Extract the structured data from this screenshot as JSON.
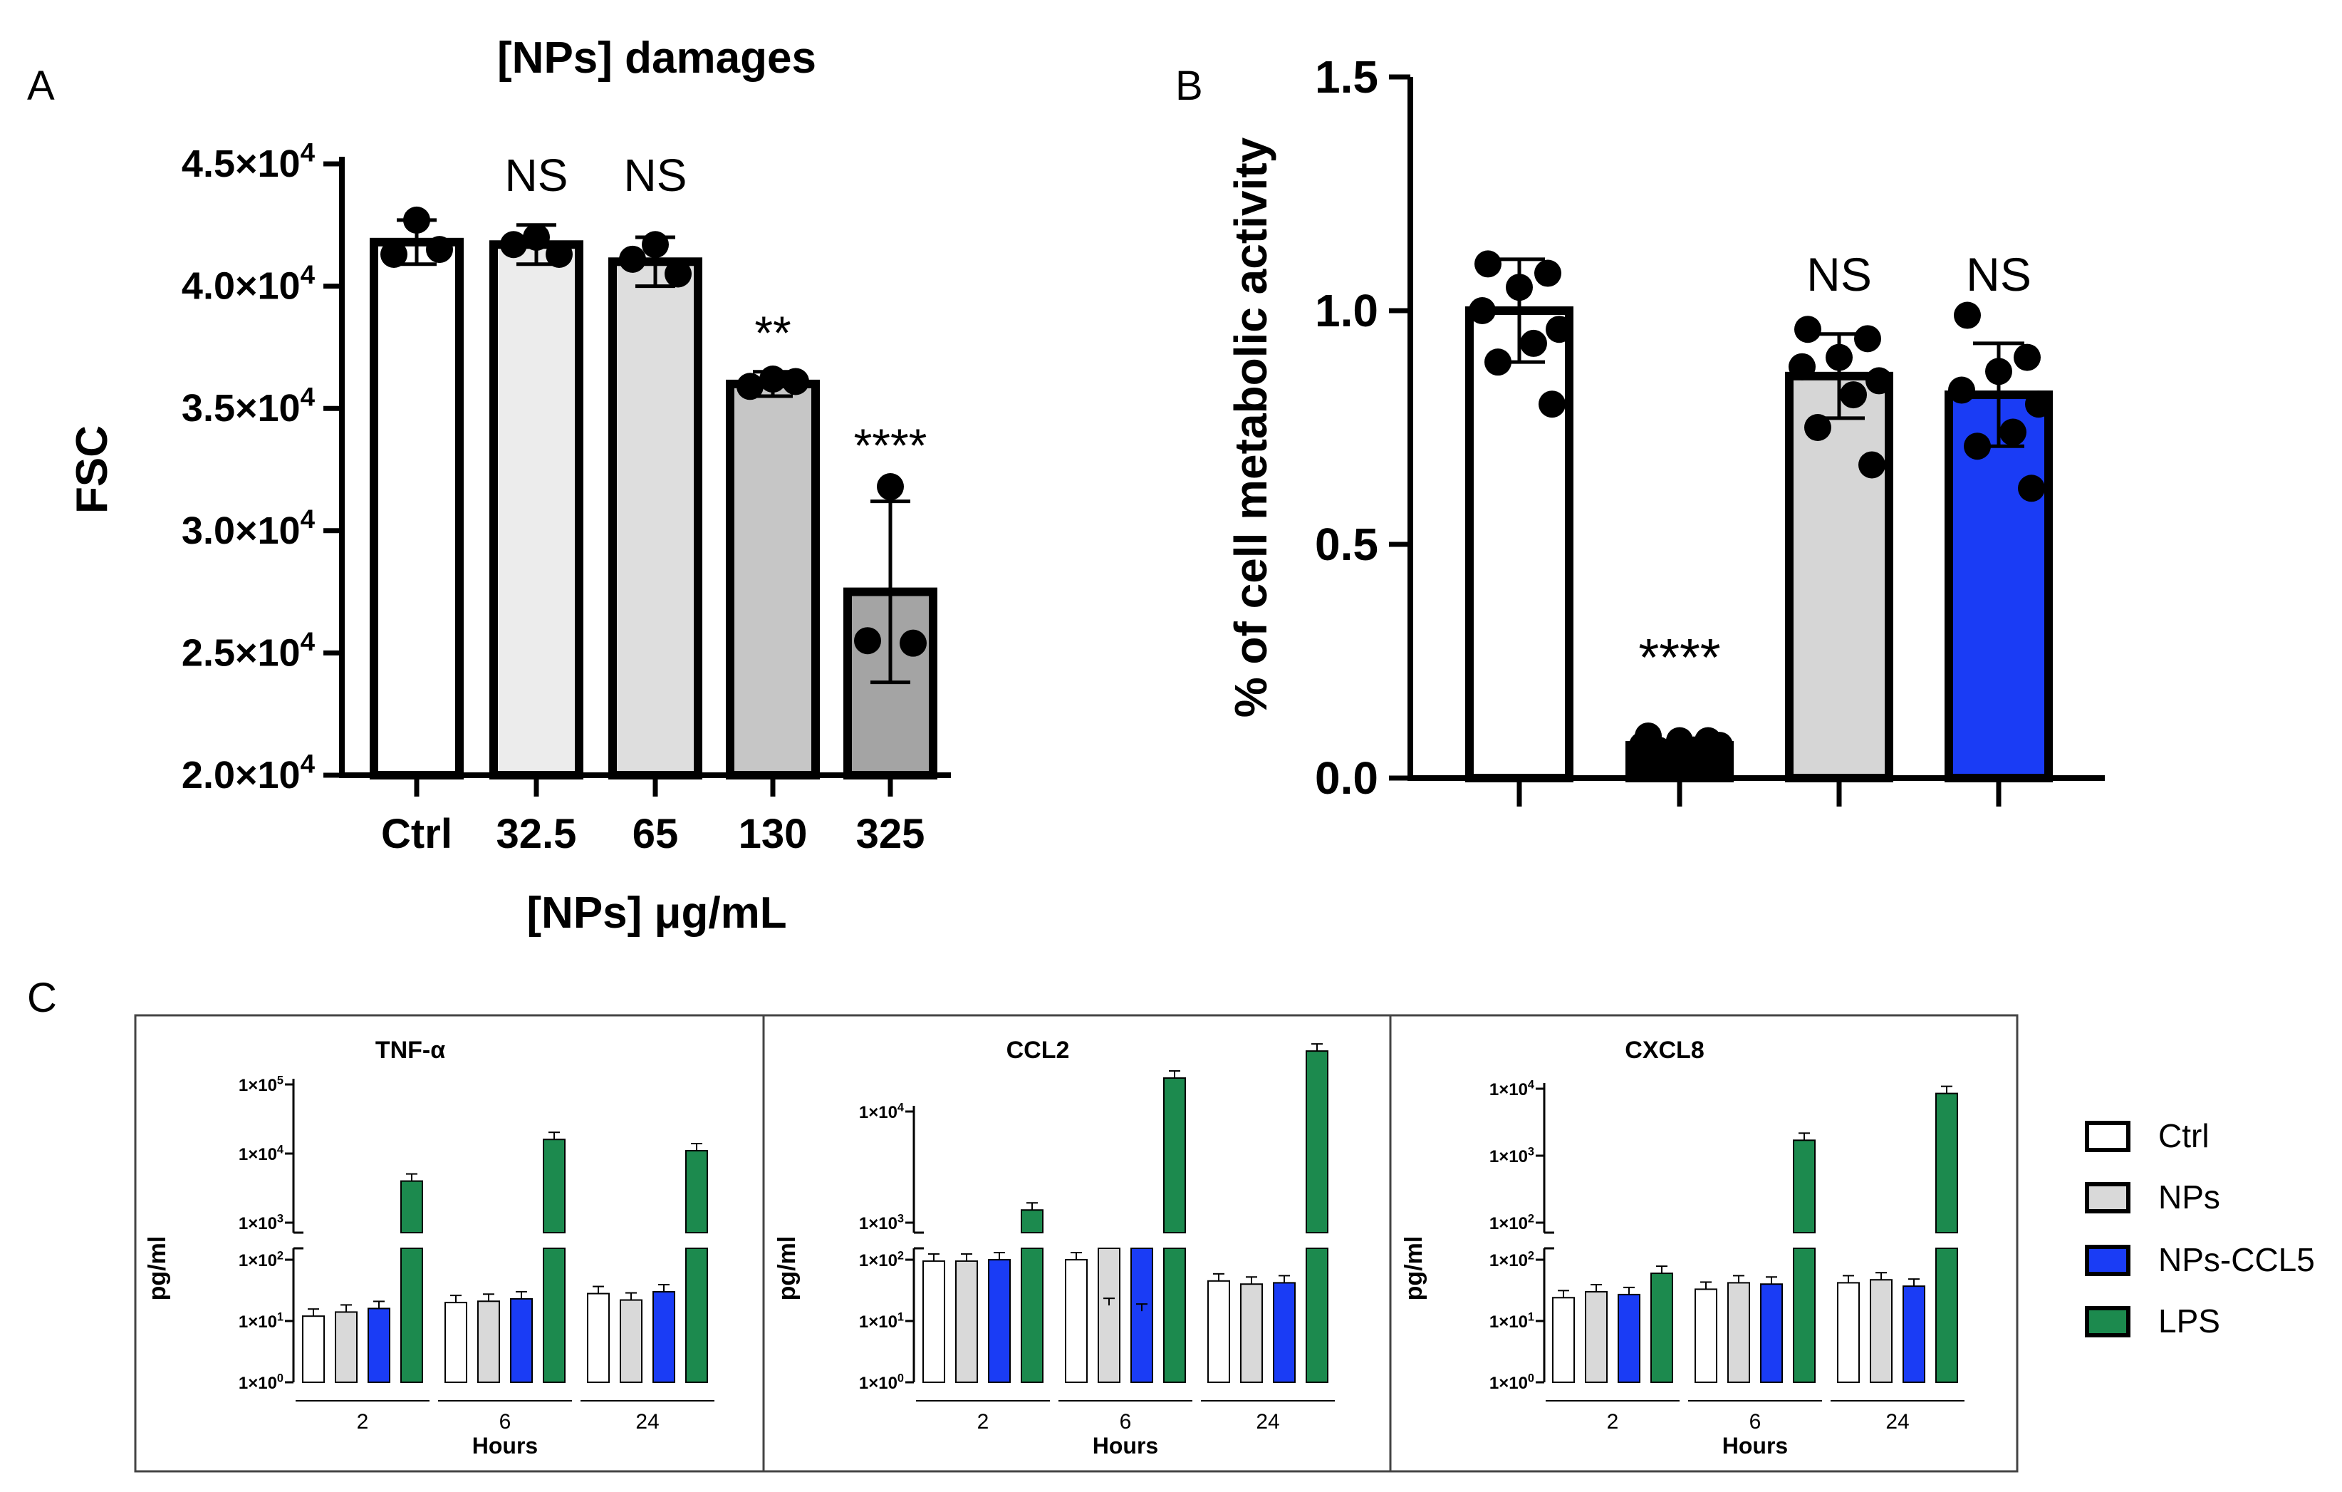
{
  "colors": {
    "ctrl": "#ffffff",
    "nps": "#d9d9d9",
    "nps_ccl5": "#1a3cf5",
    "lps": "#1c8a4e",
    "a_shades": [
      "#ffffff",
      "#ececec",
      "#dedede",
      "#c6c6c6",
      "#a4a4a4"
    ],
    "b_fills": [
      "#ffffff",
      "#000000",
      "#d6d6d6",
      "#1a3cf5"
    ]
  },
  "chart_data": [
    {
      "panel": "A",
      "type": "bar",
      "title": "[NPs] damages",
      "xlabel": "[NPs] μg/mL",
      "ylabel": "FSC",
      "ylim": [
        20000,
        45000
      ],
      "ytick_labels": [
        {
          "value": 20000,
          "mant": "2.0×10",
          "exp": "4"
        },
        {
          "value": 25000,
          "mant": "2.5×10",
          "exp": "4"
        },
        {
          "value": 30000,
          "mant": "3.0×10",
          "exp": "4"
        },
        {
          "value": 35000,
          "mant": "3.5×10",
          "exp": "4"
        },
        {
          "value": 40000,
          "mant": "4.0×10",
          "exp": "4"
        },
        {
          "value": 45000,
          "mant": "4.5×10",
          "exp": "4"
        }
      ],
      "categories": [
        "Ctrl",
        "32.5",
        "65",
        "130",
        "325"
      ],
      "values": [
        41800,
        41700,
        41000,
        36000,
        27500
      ],
      "errors": [
        900,
        800,
        1000,
        500,
        3700
      ],
      "points": [
        [
          42700,
          41300,
          41500
        ],
        [
          42000,
          41700,
          41300
        ],
        [
          41700,
          41100,
          40500
        ],
        [
          36200,
          35900,
          36100
        ],
        [
          31800,
          25500,
          25400
        ]
      ],
      "significance": [
        "",
        "NS",
        "NS",
        "**",
        "****"
      ]
    },
    {
      "panel": "B",
      "type": "bar",
      "ylabel": "% of cell metabolic activity",
      "ylim": [
        0,
        1.5
      ],
      "yticks": [
        "0.0",
        "0.5",
        "1.0",
        "1.5"
      ],
      "values": [
        1.0,
        0.07,
        0.86,
        0.82
      ],
      "errors": [
        0.11,
        0.01,
        0.09,
        0.11
      ],
      "points": [
        [
          1.1,
          1.08,
          1.05,
          1.0,
          0.96,
          0.93,
          0.89,
          0.8
        ],
        [
          0.09,
          0.08,
          0.08,
          0.07,
          0.07,
          0.06,
          0.06,
          0.06
        ],
        [
          0.96,
          0.94,
          0.9,
          0.88,
          0.85,
          0.82,
          0.75,
          0.67
        ],
        [
          0.99,
          0.9,
          0.87,
          0.83,
          0.8,
          0.74,
          0.71,
          0.62
        ]
      ],
      "significance": [
        "",
        "****",
        "NS",
        "NS"
      ]
    },
    {
      "panel": "C",
      "type": "bar",
      "scale": "log",
      "legend": [
        "Ctrl",
        "NPs",
        "NPs-CCL5",
        "LPS"
      ],
      "xlabel": "Hours",
      "ylabel": "pg/ml",
      "groups": [
        "2",
        "6",
        "24"
      ],
      "subplots": [
        {
          "title": "TNF-α",
          "upper_ticks": [
            {
              "mant": "1×10",
              "exp": "3"
            },
            {
              "mant": "1×10",
              "exp": "4"
            },
            {
              "mant": "1×10",
              "exp": "5"
            }
          ],
          "lower_ticks": [
            {
              "mant": "1×10",
              "exp": "0"
            },
            {
              "mant": "1×10",
              "exp": "1"
            },
            {
              "mant": "1×10",
              "exp": "2"
            }
          ],
          "series": [
            {
              "name": "Ctrl",
              "values": [
                12,
                20,
                28
              ]
            },
            {
              "name": "NPs",
              "values": [
                14,
                21,
                22
              ]
            },
            {
              "name": "NPs-CCL5",
              "values": [
                16,
                23,
                30
              ]
            },
            {
              "name": "LPS",
              "values": [
                4000,
                16000,
                11000
              ]
            }
          ]
        },
        {
          "title": "CCL2",
          "upper_ticks": [
            {
              "mant": "1×10",
              "exp": "3"
            },
            {
              "mant": "1×10",
              "exp": "4"
            }
          ],
          "lower_ticks": [
            {
              "mant": "1×10",
              "exp": "0"
            },
            {
              "mant": "1×10",
              "exp": "1"
            },
            {
              "mant": "1×10",
              "exp": "2"
            }
          ],
          "series": [
            {
              "name": "Ctrl",
              "values": [
                95,
                100,
                45
              ]
            },
            {
              "name": "NPs",
              "values": [
                95,
                180,
                40
              ]
            },
            {
              "name": "NPs-CCL5",
              "values": [
                100,
                160,
                42
              ]
            },
            {
              "name": "LPS",
              "values": [
                1300,
                20000,
                35000
              ]
            }
          ]
        },
        {
          "title": "CXCL8",
          "upper_ticks": [
            {
              "mant": "1×10",
              "exp": "2"
            },
            {
              "mant": "1×10",
              "exp": "3"
            },
            {
              "mant": "1×10",
              "exp": "4"
            }
          ],
          "lower_ticks": [
            {
              "mant": "1×10",
              "exp": "0"
            },
            {
              "mant": "1×10",
              "exp": "1"
            },
            {
              "mant": "1×10",
              "exp": "2"
            }
          ],
          "series": [
            {
              "name": "Ctrl",
              "values": [
                24,
                33,
                42
              ]
            },
            {
              "name": "NPs",
              "values": [
                30,
                42,
                47
              ]
            },
            {
              "name": "NPs-CCL5",
              "values": [
                27,
                40,
                37
              ]
            },
            {
              "name": "LPS",
              "values": [
                60,
                1700,
                8500
              ]
            }
          ]
        }
      ]
    }
  ]
}
